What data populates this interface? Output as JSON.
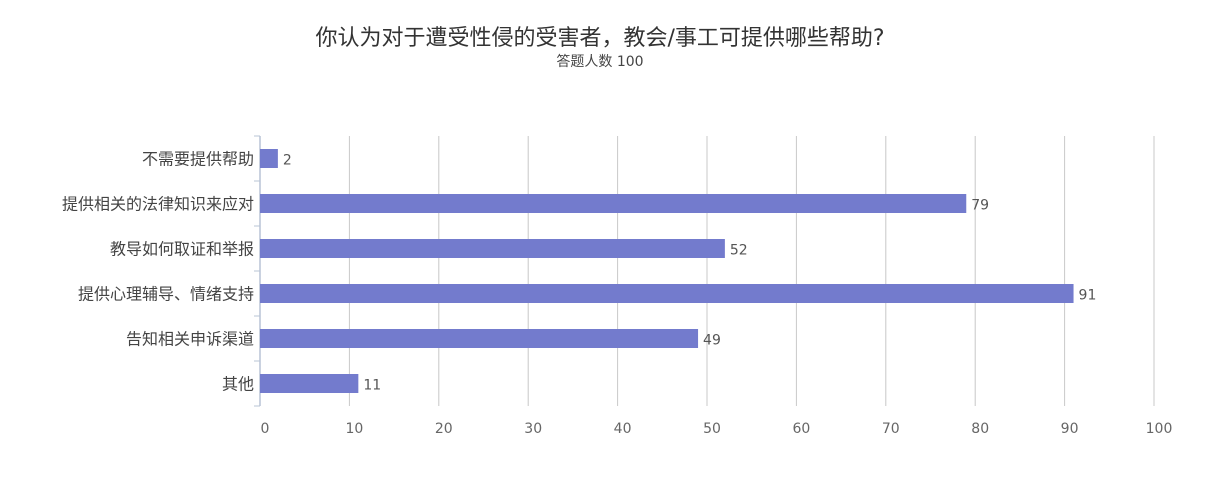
{
  "chart_data": {
    "type": "bar",
    "orientation": "horizontal",
    "title": "你认为对于遭受性侵的受害者，教会/事工可提供哪些帮助?",
    "subtitle": "答题人数 100",
    "categories": [
      "不需要提供帮助",
      "提供相关的法律知识来应对",
      "教导如何取证和举报",
      "提供心理辅导、情绪支持",
      "告知相关申诉渠道",
      "其他"
    ],
    "values": [
      2,
      79,
      52,
      91,
      49,
      11
    ],
    "x_ticks": [
      "0",
      "10",
      "20",
      "30",
      "40",
      "50",
      "60",
      "70",
      "80",
      "90",
      "100"
    ],
    "xlim": [
      0,
      100
    ],
    "grid": true,
    "bar_color": "#737bcd"
  }
}
